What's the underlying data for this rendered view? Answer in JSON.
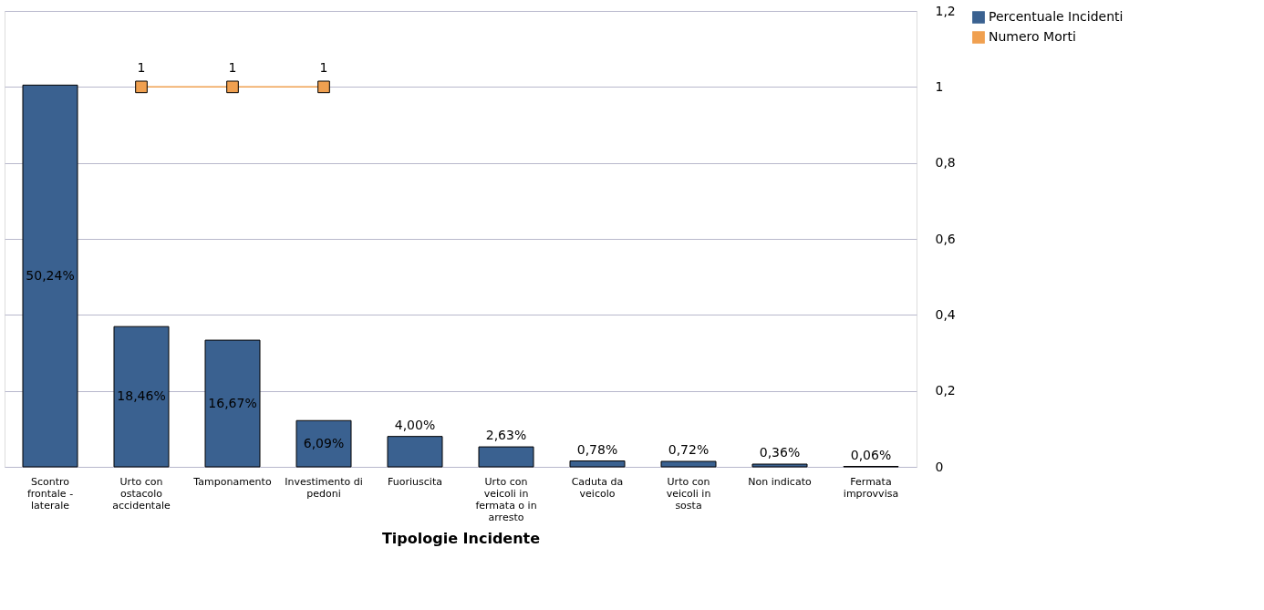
{
  "chart_data": {
    "type": "bar",
    "xlabel": "Tipologie Incidente",
    "categories": [
      "Scontro frontale - laterale",
      "Urto con ostacolo accidentale",
      "Tamponamento",
      "Investimento di pedoni",
      "Fuoriuscita",
      "Urto con veicoli in fermata o in arresto",
      "Caduta da veicolo",
      "Urto con veicoli in sosta",
      "Non indicato",
      "Fermata improvvisa"
    ],
    "series": [
      {
        "name": "Percentuale Incidenti",
        "axis": "y2",
        "color": "#3a6190",
        "values": [
          50.24,
          18.46,
          16.67,
          6.09,
          4.0,
          2.63,
          0.78,
          0.72,
          0.36,
          0.06
        ],
        "value_labels": [
          "50,24%",
          "18,46%",
          "16,67%",
          "6,09%",
          "4,00%",
          "2,63%",
          "0,78%",
          "0,72%",
          "0,36%",
          "0,06%"
        ]
      },
      {
        "name": "Numero Morti",
        "type": "line",
        "axis": "y",
        "color": "#f0a050",
        "marker": "square",
        "values": [
          null,
          1,
          1,
          1,
          null,
          null,
          null,
          null,
          null,
          null
        ],
        "value_labels": [
          null,
          "1",
          "1",
          "1",
          null,
          null,
          null,
          null,
          null,
          null
        ]
      }
    ],
    "ylim": [
      0,
      1.2
    ],
    "yticks": [
      0,
      {
        "value": 0.2,
        "label": "0,2"
      },
      {
        "value": 0.4,
        "label": "0,4"
      },
      {
        "value": 0.6,
        "label": "0,6"
      },
      {
        "value": 0.8,
        "label": "0,8"
      },
      1,
      {
        "value": 1.2,
        "label": "1,2"
      }
    ],
    "y2lim": [
      0,
      60
    ],
    "grid": "y",
    "legend": "right"
  }
}
